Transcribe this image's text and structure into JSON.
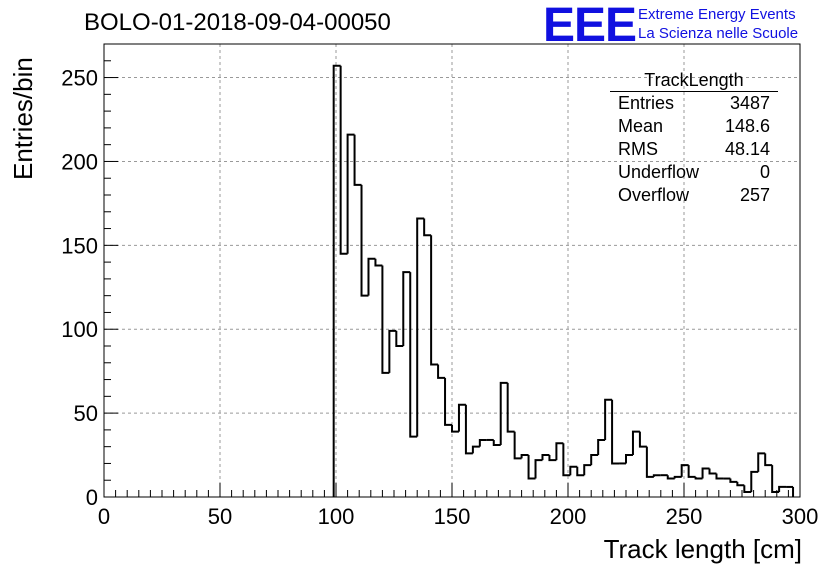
{
  "header": {
    "run_title": "BOLO-01-2018-09-04-00050",
    "logo_text": "EEE",
    "logo_line1": "Extreme Energy Events",
    "logo_line2": "La Scienza nelle Scuole",
    "logo_color": "#1010e0"
  },
  "stats": {
    "title": "TrackLength",
    "rows": [
      {
        "label": "Entries",
        "value": "3487"
      },
      {
        "label": "Mean",
        "value": "148.6"
      },
      {
        "label": "RMS",
        "value": "48.14"
      },
      {
        "label": "Underflow",
        "value": "0"
      },
      {
        "label": "Overflow",
        "value": "257"
      }
    ]
  },
  "chart_data": {
    "type": "bar",
    "title": "BOLO-01-2018-09-04-00050",
    "xlabel": "Track length [cm]",
    "ylabel": "Entries/bin",
    "xlim": [
      0,
      300
    ],
    "ylim": [
      0,
      270
    ],
    "grid": true,
    "bin_width": 3,
    "x_ticks": [
      0,
      50,
      100,
      150,
      200,
      250,
      300
    ],
    "y_ticks": [
      0,
      50,
      100,
      150,
      200,
      250
    ],
    "bin_start": 99,
    "values": [
      257,
      145,
      216,
      186,
      120,
      142,
      138,
      74,
      99,
      90,
      134,
      36,
      166,
      156,
      79,
      71,
      43,
      39,
      55,
      26,
      30,
      34,
      34,
      31,
      68,
      39,
      23,
      25,
      11,
      22,
      25,
      22,
      32,
      13,
      18,
      13,
      19,
      25,
      34,
      58,
      20,
      20,
      25,
      39,
      30,
      12,
      13,
      13,
      11,
      12,
      19,
      12,
      11,
      17,
      14,
      11,
      11,
      9,
      7,
      3,
      15,
      26,
      19,
      3,
      6,
      6
    ]
  }
}
